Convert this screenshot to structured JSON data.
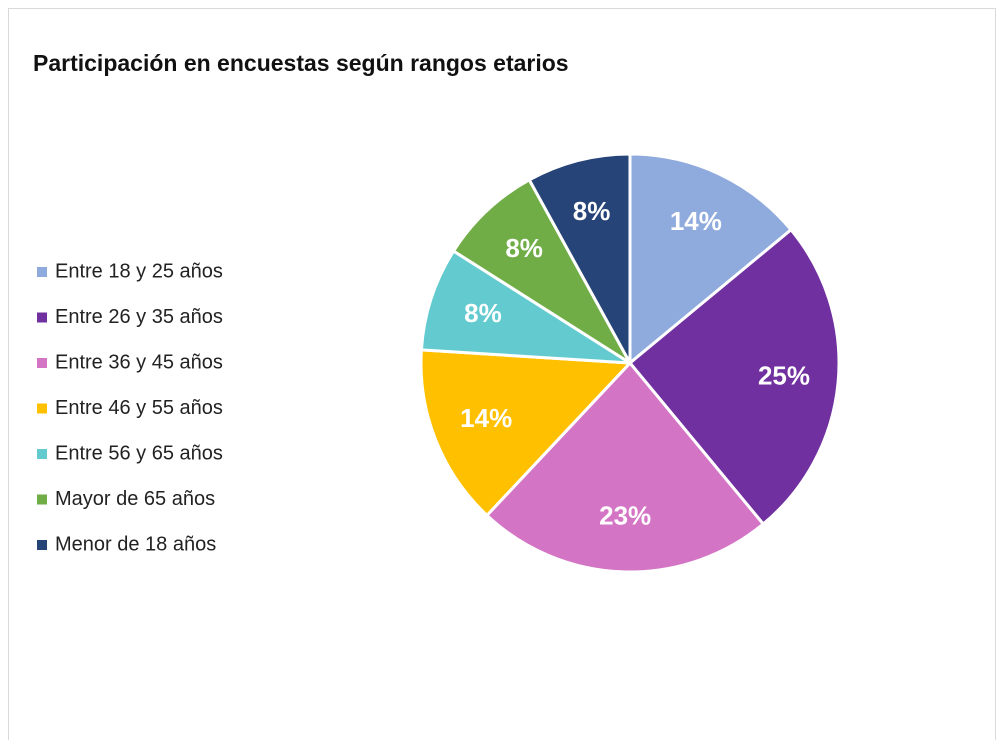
{
  "chart_data": {
    "type": "pie",
    "title": "Participación en encuestas según rangos etarios",
    "categories": [
      "Entre 18 y 25 años",
      "Entre 26 y 35 años",
      "Entre 36 y 45 años",
      "Entre 46 y 55 años",
      "Entre 56 y 65 años",
      "Mayor de 65 años",
      "Menor de 18 años"
    ],
    "values": [
      14,
      25,
      23,
      14,
      8,
      8,
      8
    ],
    "value_labels": [
      "14%",
      "25%",
      "23%",
      "14%",
      "8%",
      "8%",
      "8%"
    ],
    "colors": [
      "#8faadc",
      "#7030a0",
      "#d474c5",
      "#ffc000",
      "#63cbcf",
      "#70ad47",
      "#264478"
    ],
    "legend": "left"
  }
}
